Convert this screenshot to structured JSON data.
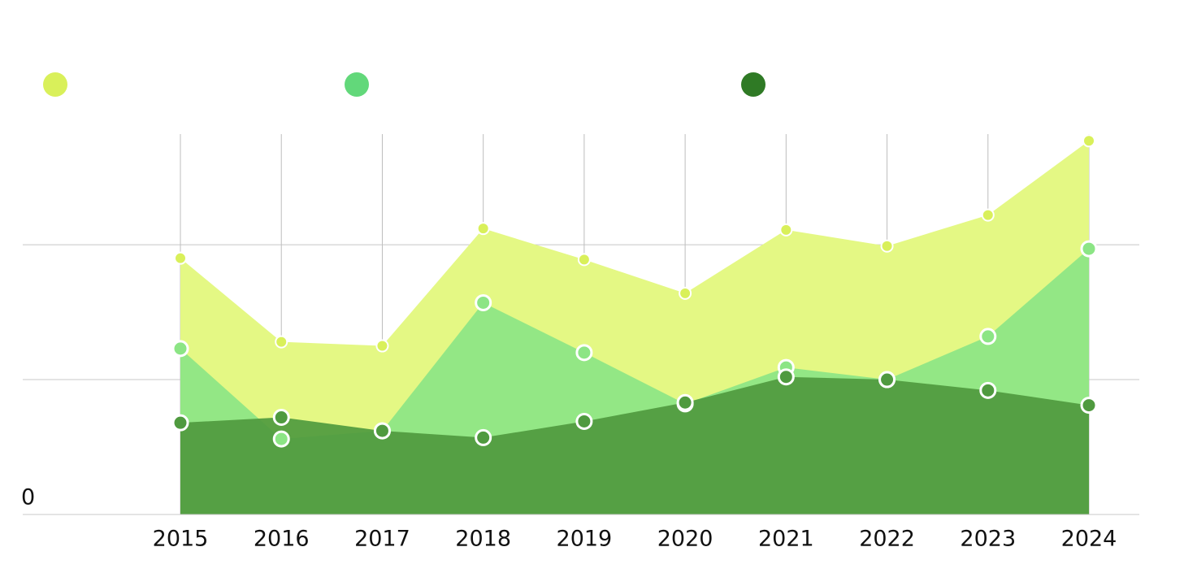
{
  "chart_data": {
    "type": "area",
    "categories": [
      "2015",
      "2016",
      "2017",
      "2018",
      "2019",
      "2020",
      "2021",
      "2022",
      "2023",
      "2024"
    ],
    "series": [
      {
        "color": "#d9f05a",
        "area_color": "#e4f884",
        "values": [
          19.0,
          12.8,
          12.5,
          21.2,
          18.9,
          16.4,
          21.1,
          19.9,
          22.2,
          27.7
        ]
      },
      {
        "color": "#62d87a",
        "area_color": "#8ce585",
        "values": [
          12.3,
          5.6,
          6.2,
          15.7,
          12.0,
          8.2,
          10.9,
          10.0,
          13.2,
          19.7
        ]
      },
      {
        "color": "#2f7a25",
        "area_color": "#4f9a3f",
        "values": [
          6.8,
          7.2,
          6.2,
          5.7,
          6.9,
          8.3,
          10.2,
          10.0,
          9.2,
          8.1
        ]
      }
    ],
    "ylim": [
      0,
      28.2
    ],
    "yticks": [
      0
    ],
    "grid_values": [
      0,
      10,
      20
    ],
    "grid": true,
    "legend": "top-left"
  }
}
